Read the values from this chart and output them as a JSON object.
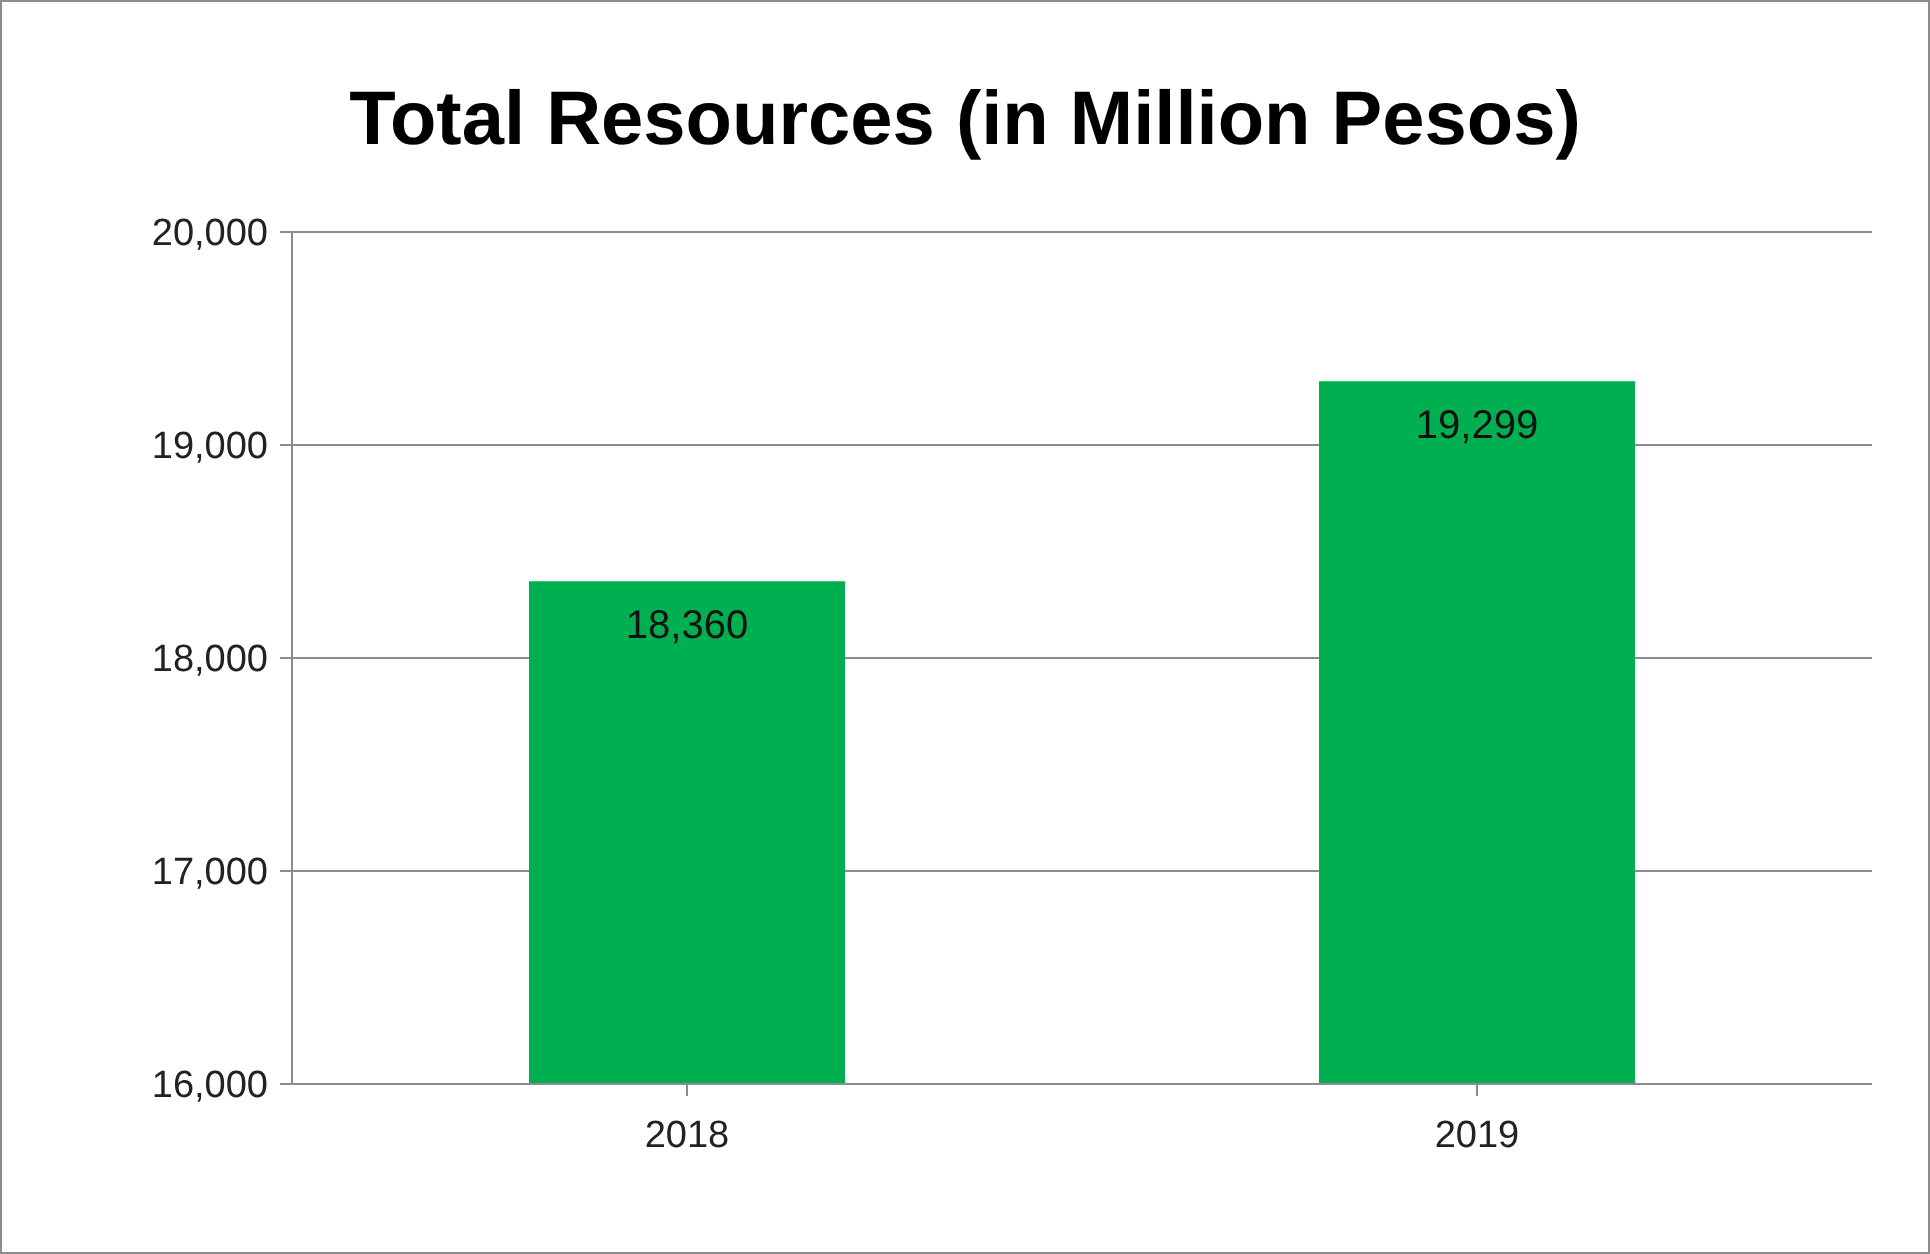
{
  "chart_data": {
    "type": "bar",
    "title": "Total Resources (in Million Pesos)",
    "categories": [
      "2018",
      "2019"
    ],
    "values": [
      18360,
      19299
    ],
    "value_labels": [
      "18,360",
      "19,299"
    ],
    "color": "#00b050",
    "ylim": [
      16000,
      20000
    ],
    "yticks": [
      {
        "value": 16000,
        "label": "16,000"
      },
      {
        "value": 17000,
        "label": "17,000"
      },
      {
        "value": 18000,
        "label": "18,000"
      },
      {
        "value": 19000,
        "label": "19,000"
      },
      {
        "value": 20000,
        "label": "20,000"
      }
    ],
    "grid": "y"
  }
}
